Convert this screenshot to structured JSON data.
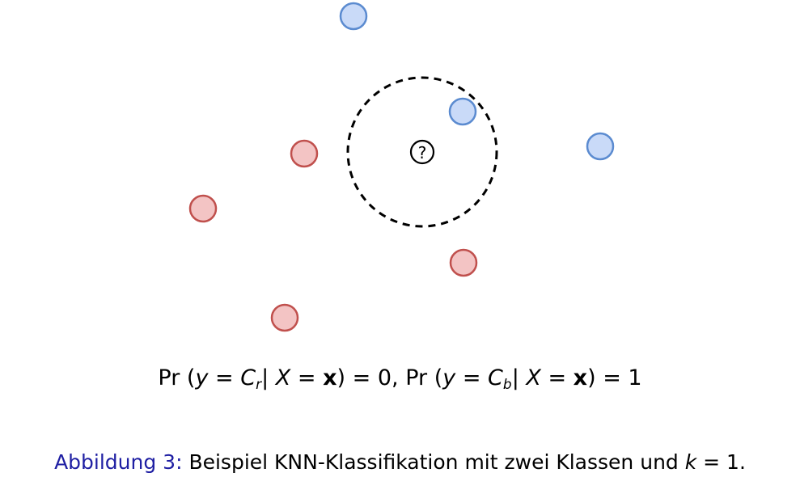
{
  "diagram": {
    "query_label": "?",
    "colors": {
      "red_fill": "#f3c4c4",
      "red_stroke": "#c0504d",
      "blue_fill": "#c9daf8",
      "blue_stroke": "#5b8bd0",
      "neighborhood_stroke": "#000000"
    }
  },
  "formula": {
    "pr1": "Pr",
    "y1": "y",
    "eq1": " = ",
    "c1": "C",
    "c1_sub": "r",
    "x1": "X",
    "eq2": " = ",
    "xvec1": "x",
    "res1": ") = 0, ",
    "pr2": "Pr",
    "y2": "y",
    "eq3": " = ",
    "c2": "C",
    "c2_sub": "b",
    "x2": "X",
    "eq4": " = ",
    "xvec2": "x",
    "res2": ") = 1"
  },
  "caption": {
    "label": "Abbildung 3:",
    "text": " Beispiel KNN-Klassifikation mit zwei Klassen und ",
    "var": "k",
    "tail": " = 1."
  }
}
